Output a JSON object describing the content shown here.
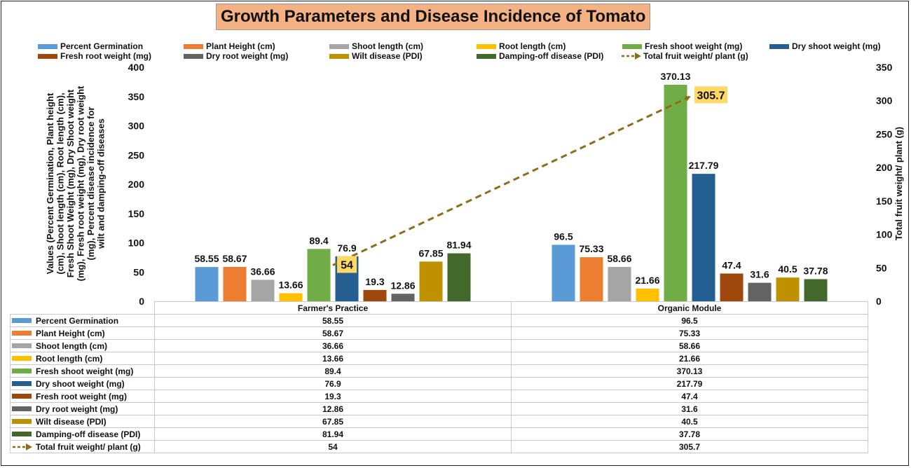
{
  "chart_data": {
    "type": "bar",
    "title": "Growth Parameters and Disease Incidence of Tomato",
    "categories": [
      "Farmer's Practice",
      "Organic Module"
    ],
    "ylabel": "Values (Percent Germination, Plant height (cm), Shoot length (cm), Root length (cm), Fresh Shoot Weight (mg), Dry Shoot weight (mg), Fresh root weight (mg), Dry root weight (mg), Percent disease incidence for wilt and damping-off diseases",
    "ylabel_lines": [
      "Values (Percent Germination, Plant height",
      "(cm), Shoot length (cm), Root length (cm),",
      "Fresh Shoot Weight (mg), Dry Shoot weight",
      "(mg), Fresh root weight (mg), Dry root weight",
      "(mg), Percent disease incidence for",
      "wilt and damping-off diseases"
    ],
    "y2label": "Total fruit weight/ plant (g)",
    "ylim": [
      0,
      400
    ],
    "y2lim": [
      0,
      350
    ],
    "yticks": [
      0,
      50,
      100,
      150,
      200,
      250,
      300,
      350,
      400
    ],
    "y2ticks": [
      0,
      50,
      100,
      150,
      200,
      250,
      300,
      350
    ],
    "grid": false,
    "legend_position": "top",
    "series": [
      {
        "name": "Percent Germination",
        "color": "#5b9bd5",
        "values": [
          58.55,
          96.5
        ],
        "labels": [
          "58.55",
          "96.5"
        ]
      },
      {
        "name": "Plant Height (cm)",
        "color": "#ed7d31",
        "values": [
          58.67,
          75.33
        ],
        "labels": [
          "58.67",
          "75.33"
        ]
      },
      {
        "name": "Shoot length (cm)",
        "color": "#a5a5a5",
        "values": [
          36.66,
          58.66
        ],
        "labels": [
          "36.66",
          "58.66"
        ]
      },
      {
        "name": "Root length (cm)",
        "color": "#ffc000",
        "values": [
          13.66,
          21.66
        ],
        "labels": [
          "13.66",
          "21.66"
        ]
      },
      {
        "name": "Fresh shoot weight (mg)",
        "color": "#70ad47",
        "values": [
          89.4,
          370.13
        ],
        "labels": [
          "89.4",
          "370.13"
        ]
      },
      {
        "name": "Dry shoot weight (mg)",
        "color": "#255e91",
        "values": [
          76.9,
          217.79
        ],
        "labels": [
          "76.9",
          "217.79"
        ]
      },
      {
        "name": "Fresh root weight (mg)",
        "color": "#9e480e",
        "values": [
          19.3,
          47.4
        ],
        "labels": [
          "19.3",
          "47.4"
        ]
      },
      {
        "name": "Dry root weight (mg)",
        "color": "#636363",
        "values": [
          12.86,
          31.6
        ],
        "labels": [
          "12.86",
          "31.6"
        ]
      },
      {
        "name": "Wilt disease (PDI)",
        "color": "#bf9000",
        "values": [
          67.85,
          40.5
        ],
        "labels": [
          "67.85",
          "40.5"
        ]
      },
      {
        "name": "Damping-off disease (PDI)",
        "color": "#43682b",
        "values": [
          81.94,
          37.78
        ],
        "labels": [
          "81.94",
          "37.78"
        ]
      }
    ],
    "line_series": {
      "name": "Total fruit weight/ plant (g)",
      "color": "#8b6d1a",
      "label_bg": "#ffd966",
      "axis": "secondary",
      "values": [
        54,
        305.7
      ],
      "labels": [
        "54",
        "305.7"
      ]
    }
  }
}
